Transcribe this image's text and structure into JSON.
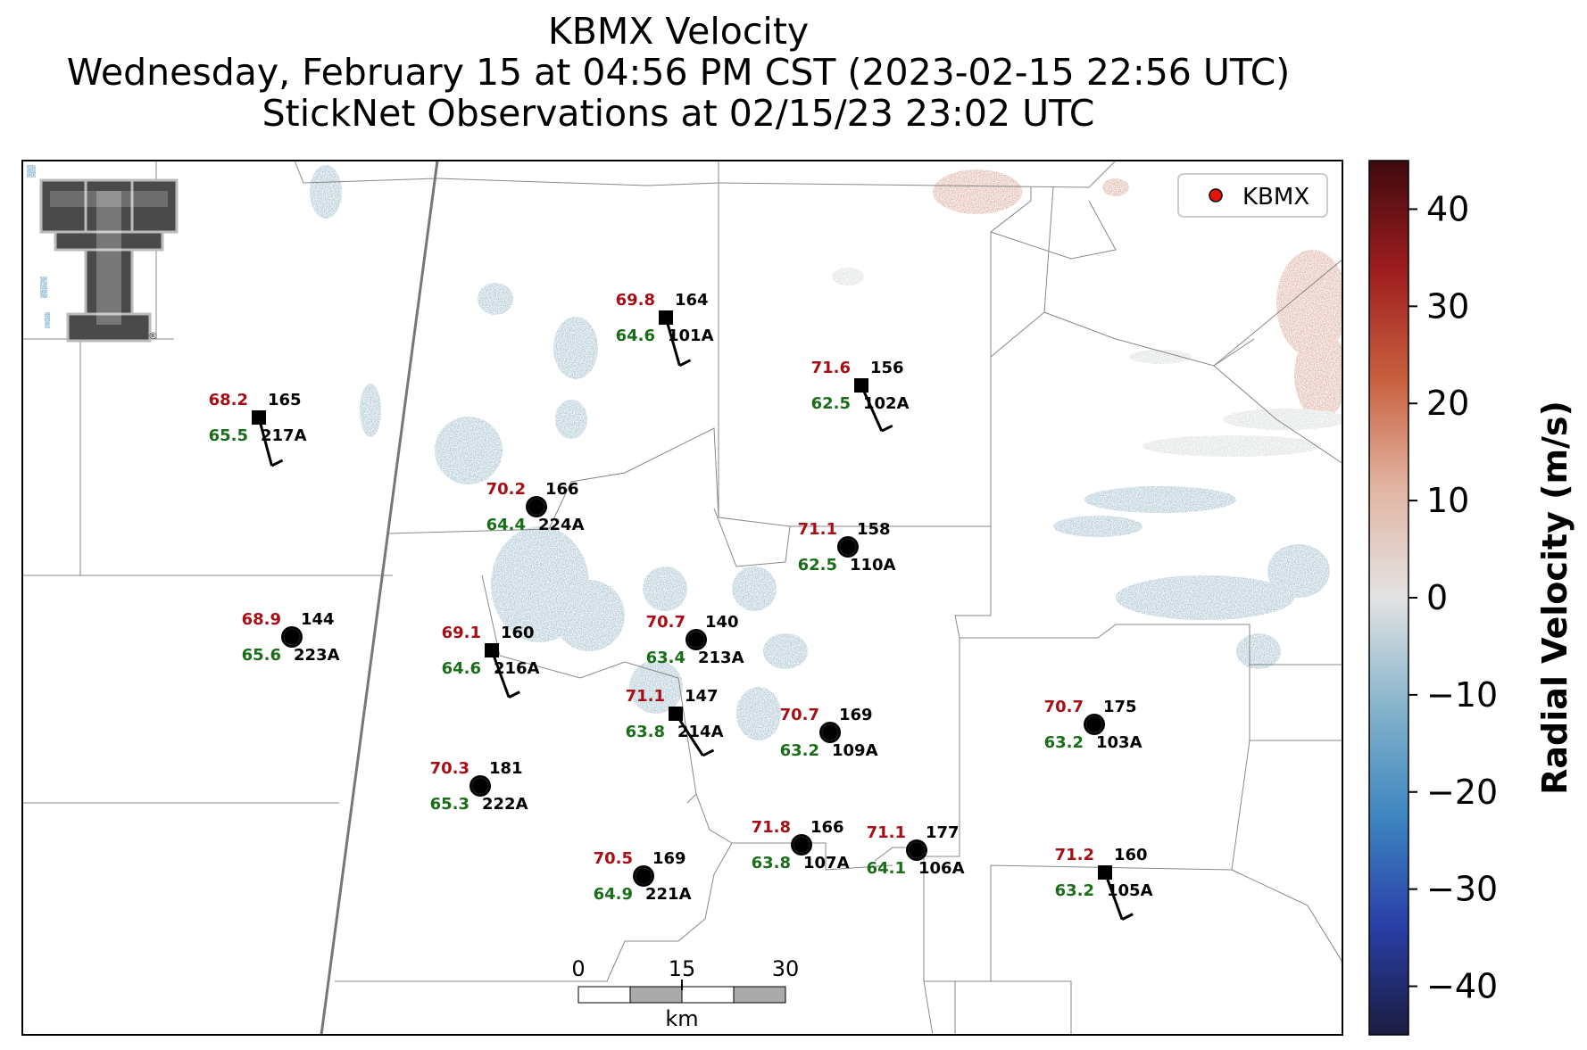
{
  "title": {
    "line1": "KBMX Velocity",
    "line2": "Wednesday, February 15 at 04:56 PM CST (2023-02-15 22:56 UTC)",
    "line3": "StickNet Observations at 02/15/23 23:02 UTC"
  },
  "legend": {
    "label": "KBMX",
    "marker_color": "#e8140c"
  },
  "colorbar": {
    "label": "Radial Velocity (m/s)",
    "range": [
      -45,
      45
    ],
    "ticks": [
      "40",
      "30",
      "20",
      "10",
      "0",
      "−10",
      "−20",
      "−30",
      "−40"
    ],
    "tick_values": [
      40,
      30,
      20,
      10,
      0,
      -10,
      -20,
      -30,
      -40
    ],
    "colors": [
      "#1b1c40",
      "#2a3fa8",
      "#3d86c0",
      "#86b3cb",
      "#e3e3e3",
      "#e2b5a3",
      "#c8603f",
      "#9e1d1f",
      "#3e0a0f"
    ]
  },
  "scalebar": {
    "ticks": [
      "0",
      "15",
      "30"
    ],
    "unit": "km"
  },
  "logo": {
    "name": "texas-tech-double-t-logo",
    "mark": "®"
  },
  "stations": [
    {
      "id": "101A",
      "temp": "69.8",
      "dew": "64.6",
      "dir": "164",
      "marker": "square",
      "wind": true
    },
    {
      "id": "102A",
      "temp": "71.6",
      "dew": "62.5",
      "dir": "156",
      "marker": "square",
      "wind": true
    },
    {
      "id": "217A",
      "temp": "68.2",
      "dew": "65.5",
      "dir": "165",
      "marker": "square",
      "wind": true
    },
    {
      "id": "224A",
      "temp": "70.2",
      "dew": "64.4",
      "dir": "166",
      "marker": "circle",
      "wind": false
    },
    {
      "id": "110A",
      "temp": "71.1",
      "dew": "62.5",
      "dir": "158",
      "marker": "circle",
      "wind": false
    },
    {
      "id": "223A",
      "temp": "68.9",
      "dew": "65.6",
      "dir": "144",
      "marker": "circle",
      "wind": false
    },
    {
      "id": "216A",
      "temp": "69.1",
      "dew": "64.6",
      "dir": "160",
      "marker": "square",
      "wind": true
    },
    {
      "id": "213A",
      "temp": "70.7",
      "dew": "63.4",
      "dir": "140",
      "marker": "circle",
      "wind": false
    },
    {
      "id": "214A",
      "temp": "71.1",
      "dew": "63.8",
      "dir": "147",
      "marker": "square",
      "wind": true
    },
    {
      "id": "109A",
      "temp": "70.7",
      "dew": "63.2",
      "dir": "169",
      "marker": "circle",
      "wind": false
    },
    {
      "id": "103A",
      "temp": "70.7",
      "dew": "63.2",
      "dir": "175",
      "marker": "circle",
      "wind": false
    },
    {
      "id": "222A",
      "temp": "70.3",
      "dew": "65.3",
      "dir": "181",
      "marker": "circle",
      "wind": false
    },
    {
      "id": "107A",
      "temp": "71.8",
      "dew": "63.8",
      "dir": "166",
      "marker": "circle",
      "wind": false
    },
    {
      "id": "106A",
      "temp": "71.1",
      "dew": "64.1",
      "dir": "177",
      "marker": "circle",
      "wind": false
    },
    {
      "id": "221A",
      "temp": "70.5",
      "dew": "64.9",
      "dir": "169",
      "marker": "circle",
      "wind": false
    },
    {
      "id": "105A",
      "temp": "71.2",
      "dew": "63.2",
      "dir": "160",
      "marker": "square",
      "wind": true
    }
  ],
  "styles": {
    "temp_color": "#a50f15",
    "dew_color": "#1a6e1a"
  }
}
